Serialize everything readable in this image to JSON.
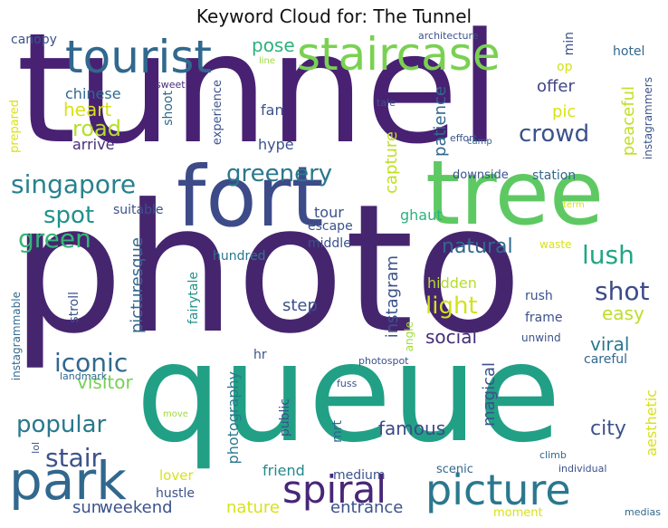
{
  "title": "Keyword Cloud for: The Tunnel",
  "words": [
    {
      "text": "tunnel",
      "color": "#482173"
    },
    {
      "text": "photo",
      "color": "#46256f"
    },
    {
      "text": "queue",
      "color": "#21a086"
    },
    {
      "text": "fort",
      "color": "#3d4b88"
    },
    {
      "text": "tree",
      "color": "#5ec962"
    },
    {
      "text": "tourist",
      "color": "#31688e"
    },
    {
      "text": "staircase",
      "color": "#7ad151"
    },
    {
      "text": "picture",
      "color": "#2a788e"
    },
    {
      "text": "park",
      "color": "#31688e"
    },
    {
      "text": "spiral",
      "color": "#482677"
    },
    {
      "text": "singapore",
      "color": "#26828e"
    },
    {
      "text": "greenery",
      "color": "#2a788e"
    },
    {
      "text": "spot",
      "color": "#21918c"
    },
    {
      "text": "green",
      "color": "#35b779"
    },
    {
      "text": "iconic",
      "color": "#31688e"
    },
    {
      "text": "popular",
      "color": "#2a788e"
    },
    {
      "text": "stair",
      "color": "#3b528b"
    },
    {
      "text": "shot",
      "color": "#3e4a89"
    },
    {
      "text": "lush",
      "color": "#21a685"
    },
    {
      "text": "crowd",
      "color": "#3b528b"
    },
    {
      "text": "road",
      "color": "#b5de2b"
    },
    {
      "text": "heart",
      "color": "#d8e219"
    },
    {
      "text": "pose",
      "color": "#2db27d"
    },
    {
      "text": "natural",
      "color": "#31688e"
    },
    {
      "text": "light",
      "color": "#d2e21b"
    },
    {
      "text": "easy",
      "color": "#bddf26"
    },
    {
      "text": "viral",
      "color": "#2a788e"
    },
    {
      "text": "social",
      "color": "#472d7b"
    },
    {
      "text": "famous",
      "color": "#3e4989"
    },
    {
      "text": "city",
      "color": "#3b528b"
    },
    {
      "text": "visitor",
      "color": "#75d054"
    },
    {
      "text": "friend",
      "color": "#23898e"
    },
    {
      "text": "weekend",
      "color": "#3b528b"
    },
    {
      "text": "entrance",
      "color": "#3b528b"
    },
    {
      "text": "nature",
      "color": "#d8e219"
    },
    {
      "text": "sun",
      "color": "#3b528b"
    },
    {
      "text": "step",
      "color": "#3b528b"
    },
    {
      "text": "offer",
      "color": "#414487"
    },
    {
      "text": "chinese",
      "color": "#31688e"
    },
    {
      "text": "arrive",
      "color": "#472d7b"
    },
    {
      "text": "fan",
      "color": "#3b528b"
    },
    {
      "text": "hype",
      "color": "#3b528b"
    },
    {
      "text": "pic",
      "color": "#d8e219"
    },
    {
      "text": "tour",
      "color": "#3b528b"
    },
    {
      "text": "escape",
      "color": "#3b528b"
    },
    {
      "text": "middle",
      "color": "#3b528b"
    },
    {
      "text": "ghaut",
      "color": "#2db27d"
    },
    {
      "text": "hundred",
      "color": "#2a788e"
    },
    {
      "text": "suitable",
      "color": "#3b528b"
    },
    {
      "text": "downside",
      "color": "#3b528b"
    },
    {
      "text": "station",
      "color": "#31688e"
    },
    {
      "text": "hidden",
      "color": "#b5de2b"
    },
    {
      "text": "rush",
      "color": "#3b528b"
    },
    {
      "text": "frame",
      "color": "#3b528b"
    },
    {
      "text": "unwind",
      "color": "#3b528b"
    },
    {
      "text": "careful",
      "color": "#31688e"
    },
    {
      "text": "hotel",
      "color": "#31688e"
    },
    {
      "text": "op",
      "color": "#d2e21b"
    },
    {
      "text": "min",
      "color": "#3b528b"
    },
    {
      "text": "canopy",
      "color": "#3b528b"
    },
    {
      "text": "architecture",
      "color": "#3b528b"
    },
    {
      "text": "line",
      "color": "#9fda3a"
    },
    {
      "text": "sweet",
      "color": "#472d7b"
    },
    {
      "text": "tale",
      "color": "#3b528b"
    },
    {
      "text": "effort",
      "color": "#3b528b"
    },
    {
      "text": "camp",
      "color": "#31688e"
    },
    {
      "text": "term",
      "color": "#d8e219"
    },
    {
      "text": "waste",
      "color": "#d8e219"
    },
    {
      "text": "medium",
      "color": "#3b528b"
    },
    {
      "text": "scenic",
      "color": "#31688e"
    },
    {
      "text": "climb",
      "color": "#31688e"
    },
    {
      "text": "individual",
      "color": "#3b528b"
    },
    {
      "text": "lover",
      "color": "#d8e219"
    },
    {
      "text": "hustle",
      "color": "#3b528b"
    },
    {
      "text": "moment",
      "color": "#d8e219"
    },
    {
      "text": "medias",
      "color": "#31688e"
    },
    {
      "text": "landmark",
      "color": "#31688e"
    },
    {
      "text": "lol",
      "color": "#3b528b"
    },
    {
      "text": "move",
      "color": "#9fda3a"
    },
    {
      "text": "fuss",
      "color": "#3b528b"
    },
    {
      "text": "photospot",
      "color": "#3b528b"
    },
    {
      "text": "hr",
      "color": "#3b528b"
    },
    {
      "text": "instagrammers",
      "color": "#3b528b"
    },
    {
      "text": "peaceful",
      "color": "#c2df23"
    },
    {
      "text": "patience",
      "color": "#31688e"
    },
    {
      "text": "capture",
      "color": "#c2df23"
    },
    {
      "text": "experience",
      "color": "#3b528b"
    },
    {
      "text": "shoot",
      "color": "#31688e"
    },
    {
      "text": "prepared",
      "color": "#d8e219"
    },
    {
      "text": "picturesque",
      "color": "#31688e"
    },
    {
      "text": "instagram",
      "color": "#3b528b"
    },
    {
      "text": "fairytale",
      "color": "#21918c"
    },
    {
      "text": "stroll",
      "color": "#3b528b"
    },
    {
      "text": "instagrammable",
      "color": "#31688e"
    },
    {
      "text": "angle",
      "color": "#9fda3a"
    },
    {
      "text": "photography",
      "color": "#2a788e"
    },
    {
      "text": "public",
      "color": "#3b528b"
    },
    {
      "text": "mrt",
      "color": "#31688e"
    },
    {
      "text": "magical",
      "color": "#3b528b"
    },
    {
      "text": "aesthetic",
      "color": "#d8e219"
    }
  ]
}
